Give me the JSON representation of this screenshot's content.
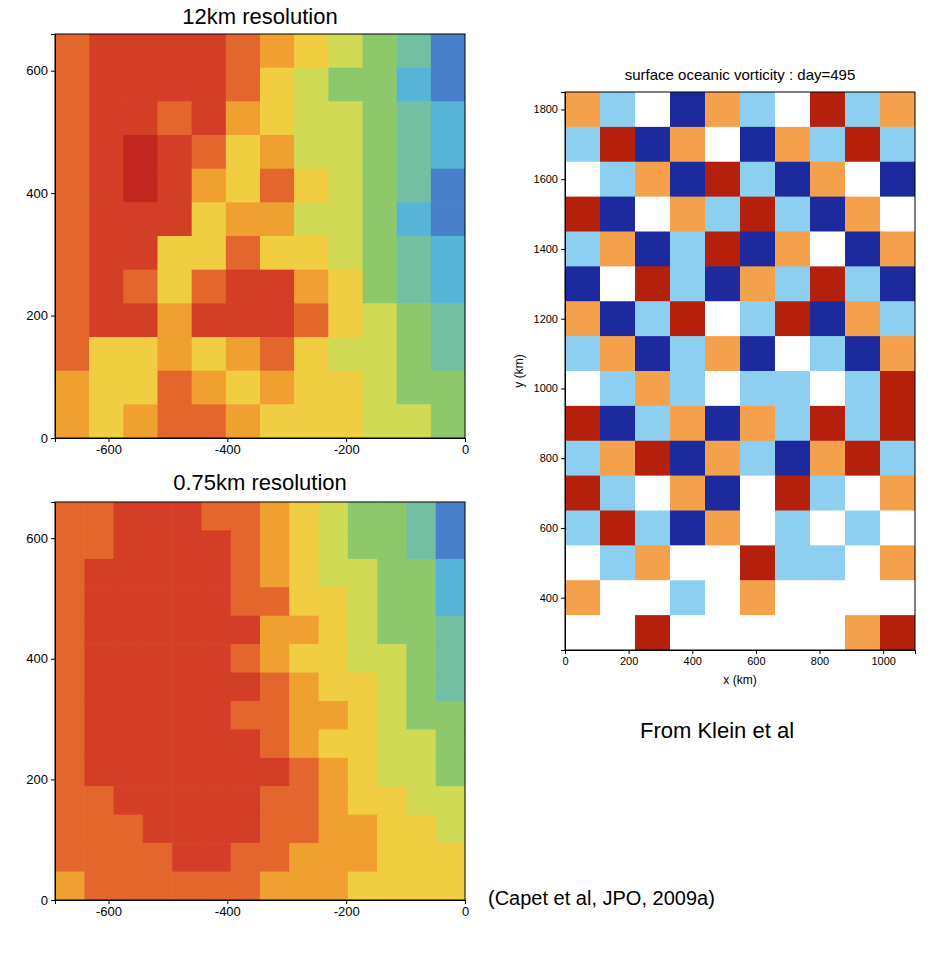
{
  "chart_data": [
    {
      "type": "heatmap",
      "title": "12km resolution",
      "xlim": [
        -690,
        0
      ],
      "ylim": [
        0,
        660
      ],
      "xticks": [
        -600,
        -400,
        -200,
        0
      ],
      "yticks": [
        0,
        200,
        400,
        600
      ],
      "zlim": [
        0,
        10
      ],
      "cells": [
        [
          8,
          9,
          9,
          9,
          9,
          8,
          7,
          6,
          5,
          4,
          3,
          1
        ],
        [
          8,
          9,
          9,
          9,
          9,
          8,
          6,
          5,
          4,
          4,
          2,
          1
        ],
        [
          8,
          9,
          9,
          8,
          9,
          7,
          6,
          5,
          5,
          4,
          3,
          2
        ],
        [
          8,
          9,
          10,
          9,
          8,
          6,
          7,
          5,
          5,
          4,
          3,
          2
        ],
        [
          8,
          9,
          10,
          9,
          7,
          6,
          8,
          6,
          5,
          4,
          3,
          1
        ],
        [
          8,
          9,
          9,
          9,
          6,
          7,
          7,
          5,
          5,
          4,
          2,
          1
        ],
        [
          8,
          9,
          9,
          6,
          6,
          8,
          6,
          6,
          5,
          4,
          3,
          2
        ],
        [
          8,
          9,
          8,
          6,
          8,
          9,
          9,
          7,
          6,
          4,
          3,
          2
        ],
        [
          8,
          9,
          9,
          7,
          9,
          9,
          9,
          8,
          6,
          5,
          4,
          3
        ],
        [
          8,
          6,
          6,
          7,
          6,
          7,
          8,
          6,
          5,
          5,
          4,
          3
        ],
        [
          7,
          6,
          6,
          8,
          7,
          6,
          7,
          6,
          6,
          5,
          4,
          4
        ],
        [
          7,
          6,
          7,
          8,
          8,
          7,
          6,
          6,
          6,
          5,
          5,
          4
        ]
      ]
    },
    {
      "type": "heatmap",
      "title": "0.75km resolution",
      "xlim": [
        -690,
        0
      ],
      "ylim": [
        0,
        660
      ],
      "xticks": [
        -600,
        -400,
        -200,
        0
      ],
      "yticks": [
        0,
        200,
        400,
        600
      ],
      "zlim": [
        0,
        10
      ],
      "cells": [
        [
          8,
          8,
          9,
          9,
          9,
          8,
          8,
          7,
          6,
          5,
          4,
          4,
          3,
          1
        ],
        [
          8,
          8,
          9,
          9,
          9,
          9,
          8,
          7,
          6,
          5,
          4,
          4,
          3,
          1
        ],
        [
          8,
          9,
          9,
          9,
          9,
          9,
          8,
          7,
          6,
          5,
          5,
          4,
          4,
          2
        ],
        [
          8,
          9,
          9,
          9,
          9,
          9,
          8,
          8,
          6,
          6,
          5,
          4,
          4,
          2
        ],
        [
          8,
          9,
          9,
          9,
          9,
          9,
          9,
          7,
          7,
          6,
          5,
          4,
          4,
          3
        ],
        [
          8,
          9,
          9,
          9,
          9,
          9,
          8,
          7,
          6,
          6,
          5,
          5,
          4,
          3
        ],
        [
          8,
          9,
          9,
          9,
          9,
          9,
          9,
          8,
          7,
          6,
          6,
          5,
          4,
          3
        ],
        [
          8,
          9,
          9,
          9,
          9,
          9,
          8,
          8,
          7,
          7,
          6,
          5,
          4,
          4
        ],
        [
          8,
          9,
          9,
          9,
          9,
          9,
          9,
          8,
          7,
          6,
          6,
          5,
          5,
          4
        ],
        [
          8,
          9,
          9,
          9,
          9,
          9,
          9,
          9,
          8,
          7,
          6,
          5,
          5,
          4
        ],
        [
          8,
          8,
          9,
          9,
          9,
          9,
          9,
          8,
          8,
          7,
          6,
          6,
          5,
          5
        ],
        [
          8,
          8,
          8,
          9,
          9,
          9,
          9,
          8,
          8,
          7,
          7,
          6,
          6,
          5
        ],
        [
          8,
          8,
          8,
          8,
          9,
          9,
          8,
          8,
          7,
          7,
          7,
          6,
          6,
          6
        ],
        [
          7,
          8,
          8,
          8,
          8,
          8,
          8,
          7,
          7,
          7,
          6,
          6,
          6,
          6
        ]
      ],
      "annotations": [
        "(Capet et al, JPO, 2009a)"
      ]
    },
    {
      "type": "heatmap",
      "title": "surface oceanic vorticity : day=495",
      "x_label": "x (km)",
      "y_label": "y (km)",
      "xlim": [
        0,
        1100
      ],
      "ylim": [
        250,
        1850
      ],
      "xticks": [
        0,
        200,
        400,
        600,
        800,
        1000
      ],
      "yticks": [
        400,
        600,
        800,
        1000,
        1200,
        1400,
        1600,
        1800
      ],
      "zlim": [
        -1,
        1
      ],
      "cells": [
        [
          0.5,
          -0.5,
          0,
          -1,
          0.5,
          -0.5,
          0,
          1,
          -0.5,
          0.5
        ],
        [
          -0.5,
          1,
          -1,
          0.5,
          0,
          -1,
          0.5,
          -0.5,
          1,
          -0.5
        ],
        [
          0,
          -0.5,
          0.5,
          -1,
          1,
          -0.5,
          -1,
          0.5,
          0,
          -1
        ],
        [
          1,
          -1,
          0,
          0.5,
          -0.5,
          1,
          -0.5,
          -1,
          0.5,
          0
        ],
        [
          -0.5,
          0.5,
          -1,
          -0.5,
          1,
          -1,
          0.5,
          0,
          -1,
          0.5
        ],
        [
          -1,
          0,
          1,
          -0.5,
          -1,
          0.5,
          -0.5,
          1,
          -0.5,
          -1
        ],
        [
          0.5,
          -1,
          -0.5,
          1,
          0,
          -0.5,
          1,
          -1,
          0.5,
          -0.5
        ],
        [
          -0.5,
          0.5,
          -1,
          -0.5,
          0.5,
          -1,
          0,
          -0.5,
          -1,
          0.5
        ],
        [
          0,
          -0.5,
          0.5,
          -0.5,
          0,
          -0.5,
          -0.5,
          0,
          -0.5,
          1
        ],
        [
          1,
          -1,
          -0.5,
          0.5,
          -1,
          0.5,
          -0.5,
          1,
          -0.5,
          1
        ],
        [
          -0.5,
          0.5,
          1,
          -1,
          0.5,
          -0.5,
          -1,
          0.5,
          1,
          -0.5
        ],
        [
          1,
          -0.5,
          0,
          0.5,
          -1,
          0,
          1,
          -0.5,
          0,
          0.5
        ],
        [
          -0.5,
          1,
          -0.5,
          -1,
          0.5,
          0,
          -0.5,
          0,
          -0.5,
          0
        ],
        [
          0,
          -0.5,
          0.5,
          0,
          0,
          1,
          -0.5,
          -0.5,
          0,
          0.5
        ],
        [
          0.5,
          0,
          0,
          -0.5,
          0,
          0.5,
          0,
          0,
          0,
          0
        ],
        [
          0,
          0,
          1,
          0,
          0,
          0,
          0,
          0,
          0.5,
          1
        ]
      ],
      "annotations": [
        "From Klein et al"
      ]
    }
  ]
}
